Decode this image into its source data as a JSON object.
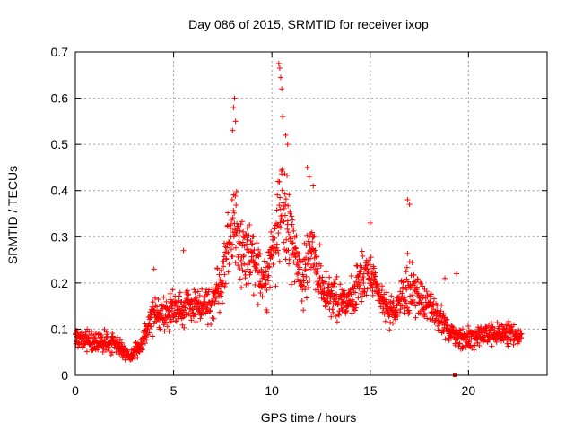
{
  "chart_data": {
    "type": "scatter",
    "title": "Day 086 of 2015, SRMTID for receiver ixop",
    "xlabel": "GPS time / hours",
    "ylabel": "SRMTID / TECUs",
    "xlim": [
      0,
      24
    ],
    "ylim": [
      0,
      0.7
    ],
    "xticks": [
      0,
      5,
      10,
      15,
      20
    ],
    "xtick_labels": [
      "0",
      "5",
      "10",
      "15",
      "20"
    ],
    "yticks": [
      0,
      0.1,
      0.2,
      0.3,
      0.4,
      0.5,
      0.6,
      0.7
    ],
    "ytick_labels": [
      "0",
      "0.1",
      "0.2",
      "0.3",
      "0.4",
      "0.5",
      "0.6",
      "0.7"
    ],
    "grid": true,
    "marker": "+",
    "series": [
      {
        "name": "SRMTID",
        "color": "#ff0000",
        "profile": {
          "description": "approximate envelope of the scatter (hour, center, spread)",
          "hours": [
            0,
            1,
            2,
            2.8,
            3.5,
            4,
            5,
            6,
            7,
            7.5,
            8,
            8.5,
            9,
            9.5,
            10,
            10.5,
            11,
            11.5,
            12,
            12.5,
            13,
            14,
            14.5,
            15,
            15.5,
            16,
            16.5,
            17,
            17.5,
            18,
            18.5,
            19,
            19.5,
            20,
            21,
            22,
            22.7
          ],
          "center": [
            0.08,
            0.07,
            0.07,
            0.04,
            0.08,
            0.13,
            0.14,
            0.15,
            0.16,
            0.22,
            0.32,
            0.28,
            0.26,
            0.2,
            0.25,
            0.38,
            0.3,
            0.2,
            0.27,
            0.2,
            0.17,
            0.16,
            0.2,
            0.22,
            0.17,
            0.13,
            0.15,
            0.2,
            0.17,
            0.15,
            0.12,
            0.1,
            0.08,
            0.08,
            0.09,
            0.09,
            0.08
          ],
          "spread": [
            0.03,
            0.03,
            0.03,
            0.02,
            0.03,
            0.04,
            0.05,
            0.05,
            0.05,
            0.08,
            0.14,
            0.1,
            0.08,
            0.07,
            0.1,
            0.16,
            0.1,
            0.07,
            0.1,
            0.07,
            0.06,
            0.05,
            0.07,
            0.07,
            0.05,
            0.04,
            0.05,
            0.08,
            0.06,
            0.05,
            0.04,
            0.03,
            0.03,
            0.03,
            0.03,
            0.03,
            0.03
          ]
        },
        "peaks": [
          {
            "x": 8.1,
            "y": 0.6
          },
          {
            "x": 8.05,
            "y": 0.58
          },
          {
            "x": 8.15,
            "y": 0.55
          },
          {
            "x": 8.0,
            "y": 0.53
          },
          {
            "x": 10.35,
            "y": 0.675
          },
          {
            "x": 10.4,
            "y": 0.665
          },
          {
            "x": 10.45,
            "y": 0.645
          },
          {
            "x": 10.5,
            "y": 0.62
          },
          {
            "x": 10.55,
            "y": 0.56
          },
          {
            "x": 10.7,
            "y": 0.52
          },
          {
            "x": 10.8,
            "y": 0.5
          },
          {
            "x": 11.8,
            "y": 0.45
          },
          {
            "x": 11.9,
            "y": 0.43
          },
          {
            "x": 12.1,
            "y": 0.41
          },
          {
            "x": 16.9,
            "y": 0.38
          },
          {
            "x": 17.0,
            "y": 0.37
          },
          {
            "x": 15.0,
            "y": 0.33
          },
          {
            "x": 5.5,
            "y": 0.27
          },
          {
            "x": 4.0,
            "y": 0.23
          },
          {
            "x": 18.8,
            "y": 0.21
          },
          {
            "x": 19.4,
            "y": 0.22
          }
        ],
        "outlier": {
          "x": 19.3,
          "y": 0.0
        }
      }
    ]
  }
}
